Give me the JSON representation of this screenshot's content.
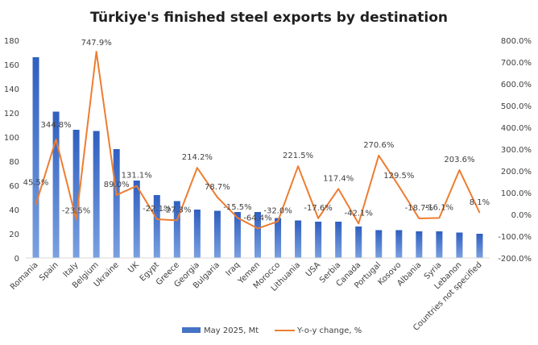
{
  "chart_data": {
    "type": "bar",
    "title": "Türkiye's finished steel exports by destination",
    "categories": [
      "Romania",
      "Spain",
      "Italy",
      "Belgium",
      "Ukraine",
      "UK",
      "Egypt",
      "Greece",
      "Georgia",
      "Bulgaria",
      "Iraq",
      "Yemen",
      "Morocco",
      "Lithuania",
      "USA",
      "Serbia",
      "Canada",
      "Portugal",
      "Kosovo",
      "Albania",
      "Syria",
      "Lebanon",
      "Countries not specified"
    ],
    "series": [
      {
        "name": "May 2025, Mt",
        "type": "bar",
        "axis": "left",
        "color": "#4472c4",
        "values": [
          166,
          121,
          106,
          105,
          90,
          64,
          52,
          47,
          40,
          39,
          38,
          38,
          33,
          31,
          30,
          30,
          26,
          23,
          23,
          22,
          22,
          21,
          20
        ]
      },
      {
        "name": "Y-o-y change, %",
        "type": "line",
        "axis": "right",
        "color": "#ed7d31",
        "values": [
          45.5,
          344.8,
          -23.5,
          747.9,
          89.0,
          131.1,
          -22.1,
          -27.3,
          214.2,
          78.7,
          -15.5,
          -64.4,
          -32.0,
          221.5,
          -17.6,
          117.4,
          -42.1,
          270.6,
          129.5,
          -18.7,
          -16.1,
          203.6,
          8.1
        ],
        "labels": [
          "45.5%",
          "344.8%",
          "-23.5%",
          "747.9%",
          "89.0%",
          "131.1%",
          "-22.1%",
          "-27.3%",
          "214.2%",
          "78.7%",
          "-15.5%",
          "-64.4%",
          "-32.0%",
          "221.5%",
          "-17.6%",
          "117.4%",
          "-42.1%",
          "270.6%",
          "129.5%",
          "-18.7%",
          "-16.1%",
          "203.6%",
          "8.1%"
        ]
      }
    ],
    "y_left": {
      "ylim": [
        0,
        180
      ],
      "ticks": [
        "0",
        "20",
        "40",
        "60",
        "80",
        "100",
        "120",
        "140",
        "160",
        "180"
      ]
    },
    "y_right": {
      "ylim": [
        -200,
        800
      ],
      "ticks": [
        "-200.0%",
        "-100.0%",
        "0.0%",
        "100.0%",
        "200.0%",
        "300.0%",
        "400.0%",
        "500.0%",
        "600.0%",
        "700.0%",
        "800.0%"
      ]
    },
    "grid": false,
    "legend_position": "bottom"
  }
}
